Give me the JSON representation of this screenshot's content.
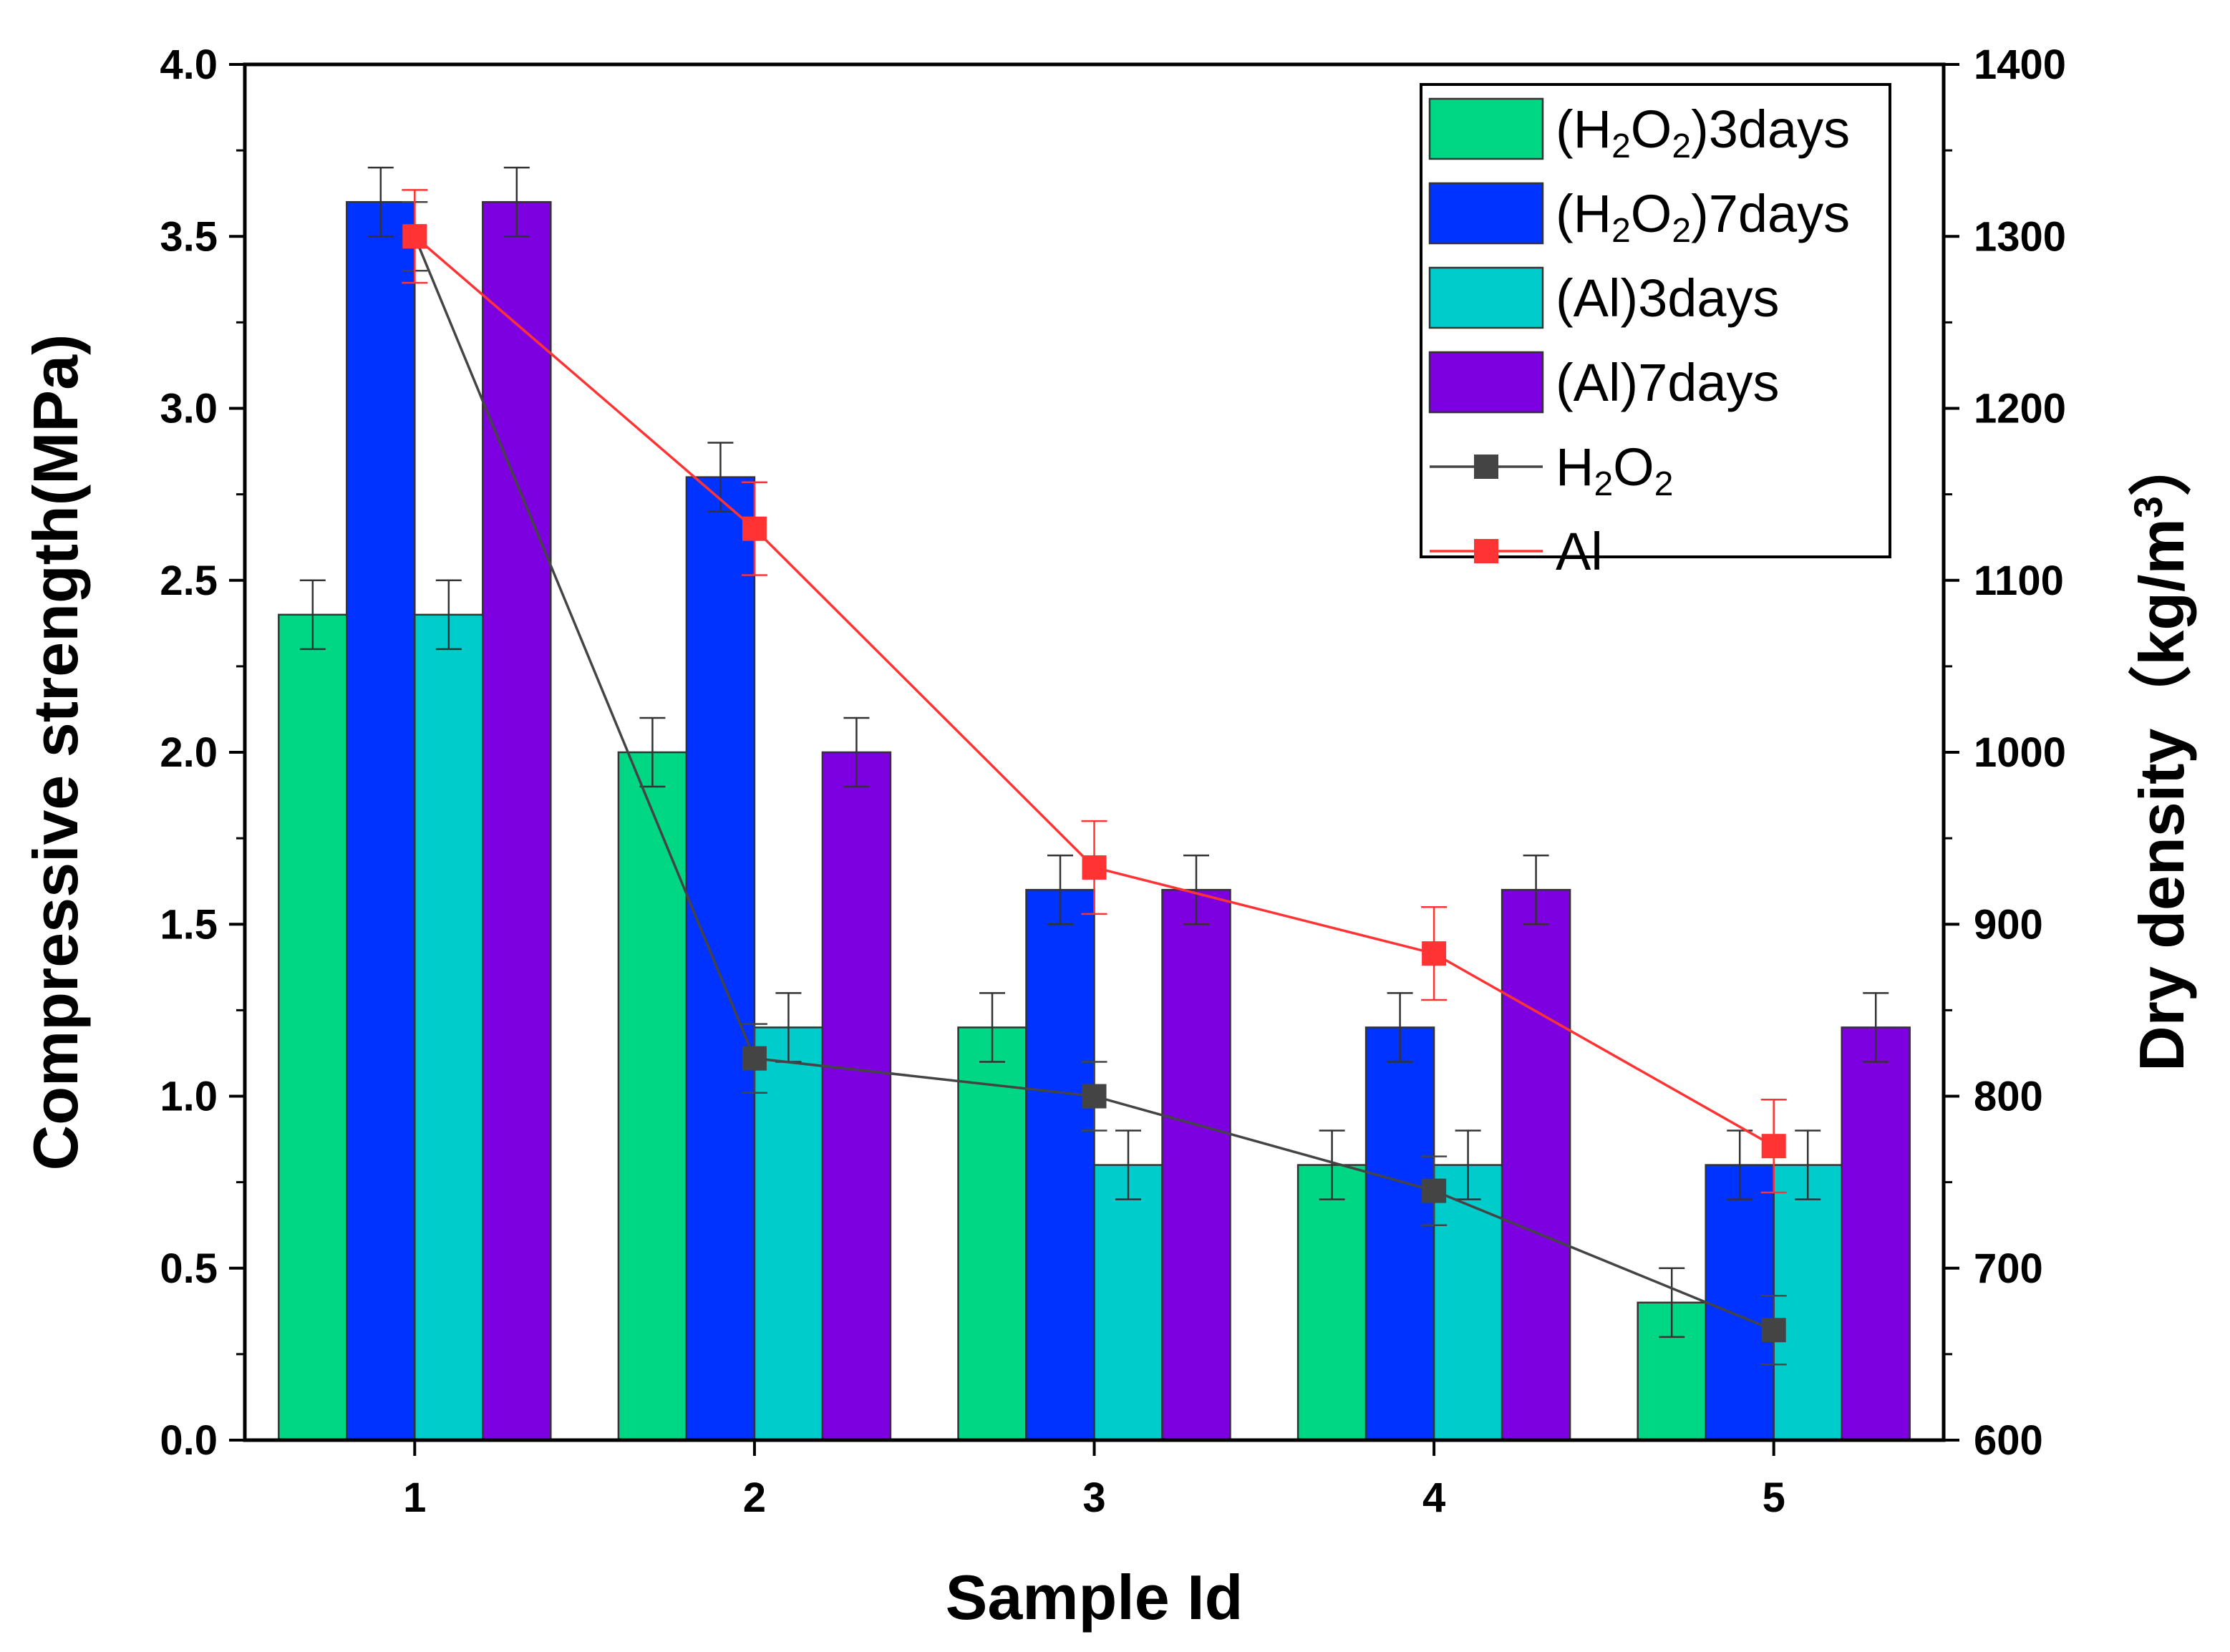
{
  "chart_data": {
    "type": "bar",
    "categories": [
      "1",
      "2",
      "3",
      "4",
      "5"
    ],
    "xlabel": "Sample Id",
    "ylabel": "Compressive strength(MPa)",
    "y2label_prefix": "Dry density（kg/m",
    "y2label_sup": "3",
    "y2label_suffix": "）",
    "ylim": [
      0,
      4.0
    ],
    "y2lim": [
      600,
      1400
    ],
    "yticks": [
      "0.0",
      "0.5",
      "1.0",
      "1.5",
      "2.0",
      "2.5",
      "3.0",
      "3.5",
      "4.0"
    ],
    "y2ticks": [
      "600",
      "700",
      "800",
      "900",
      "1000",
      "1100",
      "1200",
      "1300",
      "1400"
    ],
    "bar_series": [
      {
        "name": "(H2O2)3days",
        "label_parts": [
          "(H",
          "2",
          "O",
          "2",
          ")3days"
        ],
        "color": "#00d784",
        "values": [
          2.4,
          2.0,
          1.2,
          0.8,
          0.4
        ],
        "errors": [
          0.1,
          0.1,
          0.1,
          0.1,
          0.1
        ]
      },
      {
        "name": "(H2O2)7days",
        "label_parts": [
          "(H",
          "2",
          "O",
          "2",
          ")7days"
        ],
        "color": "#0033ff",
        "values": [
          3.6,
          2.8,
          1.6,
          1.2,
          0.8
        ],
        "errors": [
          0.1,
          0.1,
          0.1,
          0.1,
          0.1
        ]
      },
      {
        "name": "(Al)3days",
        "label_parts": [
          "(Al)3days"
        ],
        "color": "#00cccc",
        "values": [
          2.4,
          1.2,
          0.8,
          0.8,
          0.8
        ],
        "errors": [
          0.1,
          0.1,
          0.1,
          0.1,
          0.1
        ]
      },
      {
        "name": "(Al)7days",
        "label_parts": [
          "(Al)7days"
        ],
        "color": "#7d00e0",
        "values": [
          3.6,
          2.0,
          1.6,
          1.6,
          1.2
        ],
        "errors": [
          0.1,
          0.1,
          0.1,
          0.1,
          0.1
        ]
      }
    ],
    "line_series": [
      {
        "name": "H2O2",
        "label_parts": [
          "H",
          "2",
          "O",
          "2"
        ],
        "color": "#444444",
        "axis": "right",
        "values": [
          1300,
          822,
          800,
          745,
          664
        ],
        "errors": [
          20,
          20,
          20,
          20,
          20
        ]
      },
      {
        "name": "Al",
        "label_parts": [
          "Al"
        ],
        "color": "#ff3333",
        "axis": "right",
        "values": [
          1300,
          1130,
          933,
          883,
          771
        ],
        "errors": [
          27,
          27,
          27,
          27,
          27
        ]
      }
    ],
    "legend_position": "top-right",
    "grid": false
  }
}
